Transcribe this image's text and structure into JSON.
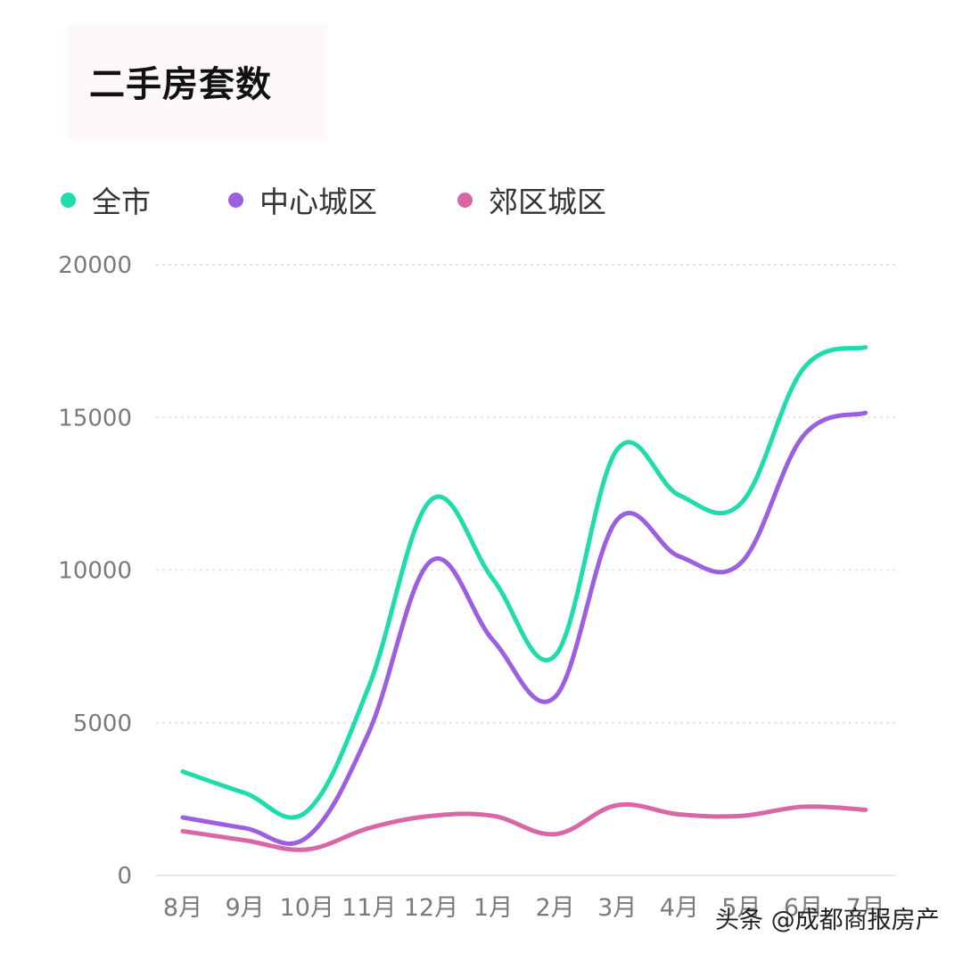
{
  "title": "二手房套数",
  "watermark": "头条 @成都商报房产",
  "chart_data": {
    "type": "line",
    "categories": [
      "8月",
      "9月",
      "10月",
      "11月",
      "12月",
      "1月",
      "2月",
      "3月",
      "4月",
      "5月",
      "6月",
      "7月"
    ],
    "series": [
      {
        "name": "全市",
        "color": "#1fdcac",
        "values": [
          3400,
          2700,
          2100,
          6200,
          12300,
          9700,
          7200,
          13950,
          12450,
          12200,
          16600,
          17300
        ]
      },
      {
        "name": "中心城区",
        "color": "#9b5fe0",
        "values": [
          1900,
          1550,
          1250,
          4700,
          10300,
          7700,
          5850,
          11650,
          10450,
          10250,
          14400,
          15150
        ]
      },
      {
        "name": "郊区城区",
        "color": "#d966a5",
        "values": [
          1450,
          1150,
          850,
          1550,
          1950,
          1950,
          1350,
          2300,
          2000,
          1950,
          2250,
          2150
        ]
      }
    ],
    "y_ticks": [
      "0",
      "5000",
      "10000",
      "15000",
      "20000"
    ],
    "ylim": [
      0,
      20000
    ],
    "xlabel": "",
    "ylabel": "",
    "grid": true,
    "legend_position": "top-left"
  }
}
